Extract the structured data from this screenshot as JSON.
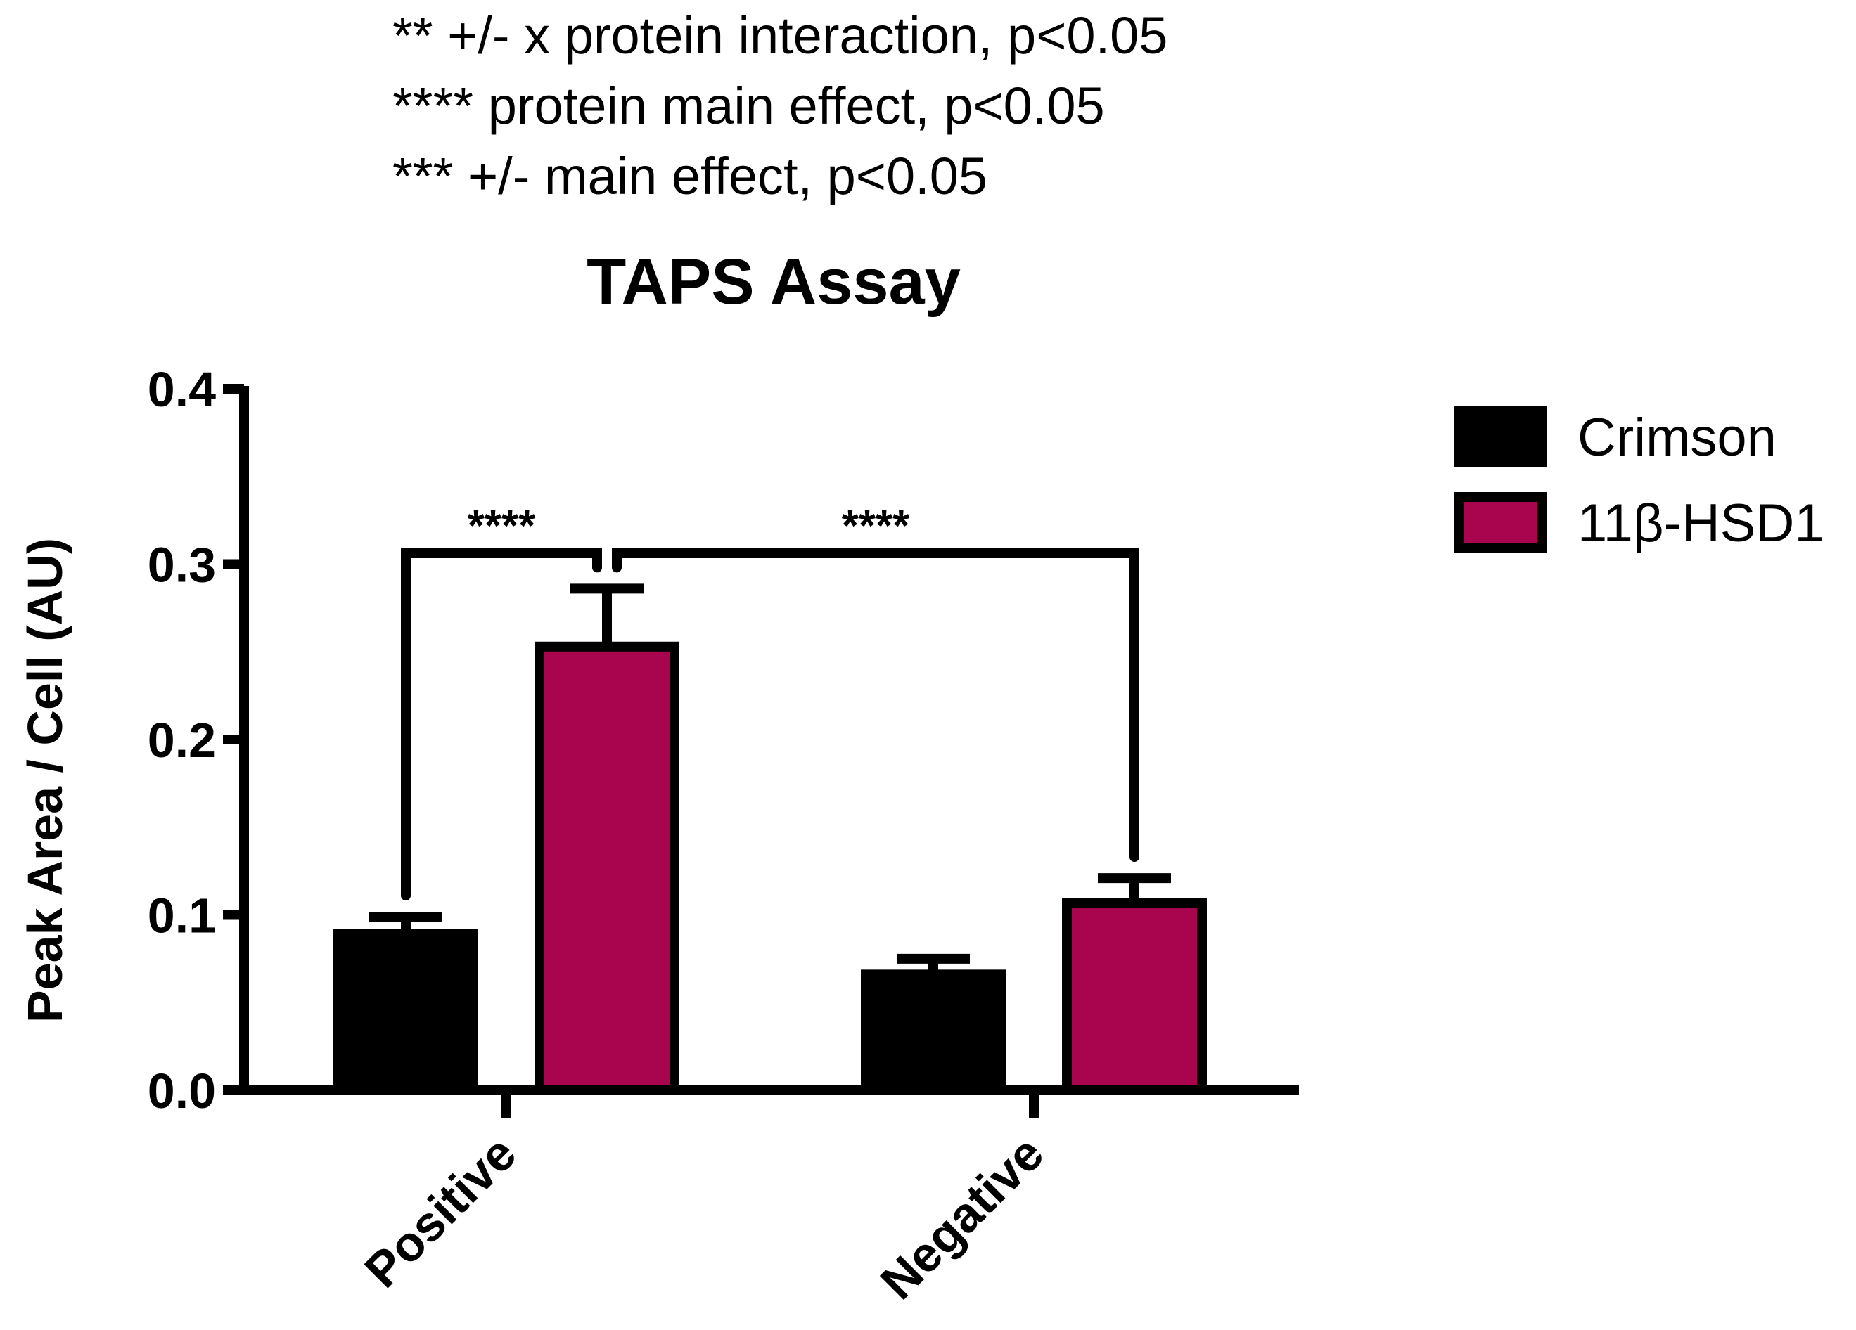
{
  "annotations": [
    "** +/-  x protein interaction, p<0.05",
    "**** protein main effect, p<0.05",
    "*** +/- main effect, p<0.05"
  ],
  "chart_data": {
    "type": "bar",
    "title": "TAPS Assay",
    "xlabel": "",
    "ylabel": "Peak Area / Cell (AU)",
    "categories": [
      "Positive",
      "Negative"
    ],
    "series": [
      {
        "name": "Crimson",
        "color": "#000000",
        "values": [
          0.089,
          0.066
        ],
        "errors": [
          0.01,
          0.009
        ]
      },
      {
        "name": "11β-HSD1",
        "color": "#a8054e",
        "values": [
          0.253,
          0.107
        ],
        "errors": [
          0.033,
          0.014
        ]
      }
    ],
    "ylim": [
      0.0,
      0.4
    ],
    "yticks": [
      "0.0",
      "0.1",
      "0.2",
      "0.3",
      "0.4"
    ],
    "grid": false,
    "legend_position": "top-right",
    "significance": [
      {
        "label": "****",
        "from": "Positive/Crimson",
        "to": "Positive/11β-HSD1"
      },
      {
        "label": "****",
        "from": "Positive/11β-HSD1",
        "to": "Negative/11β-HSD1"
      }
    ]
  }
}
